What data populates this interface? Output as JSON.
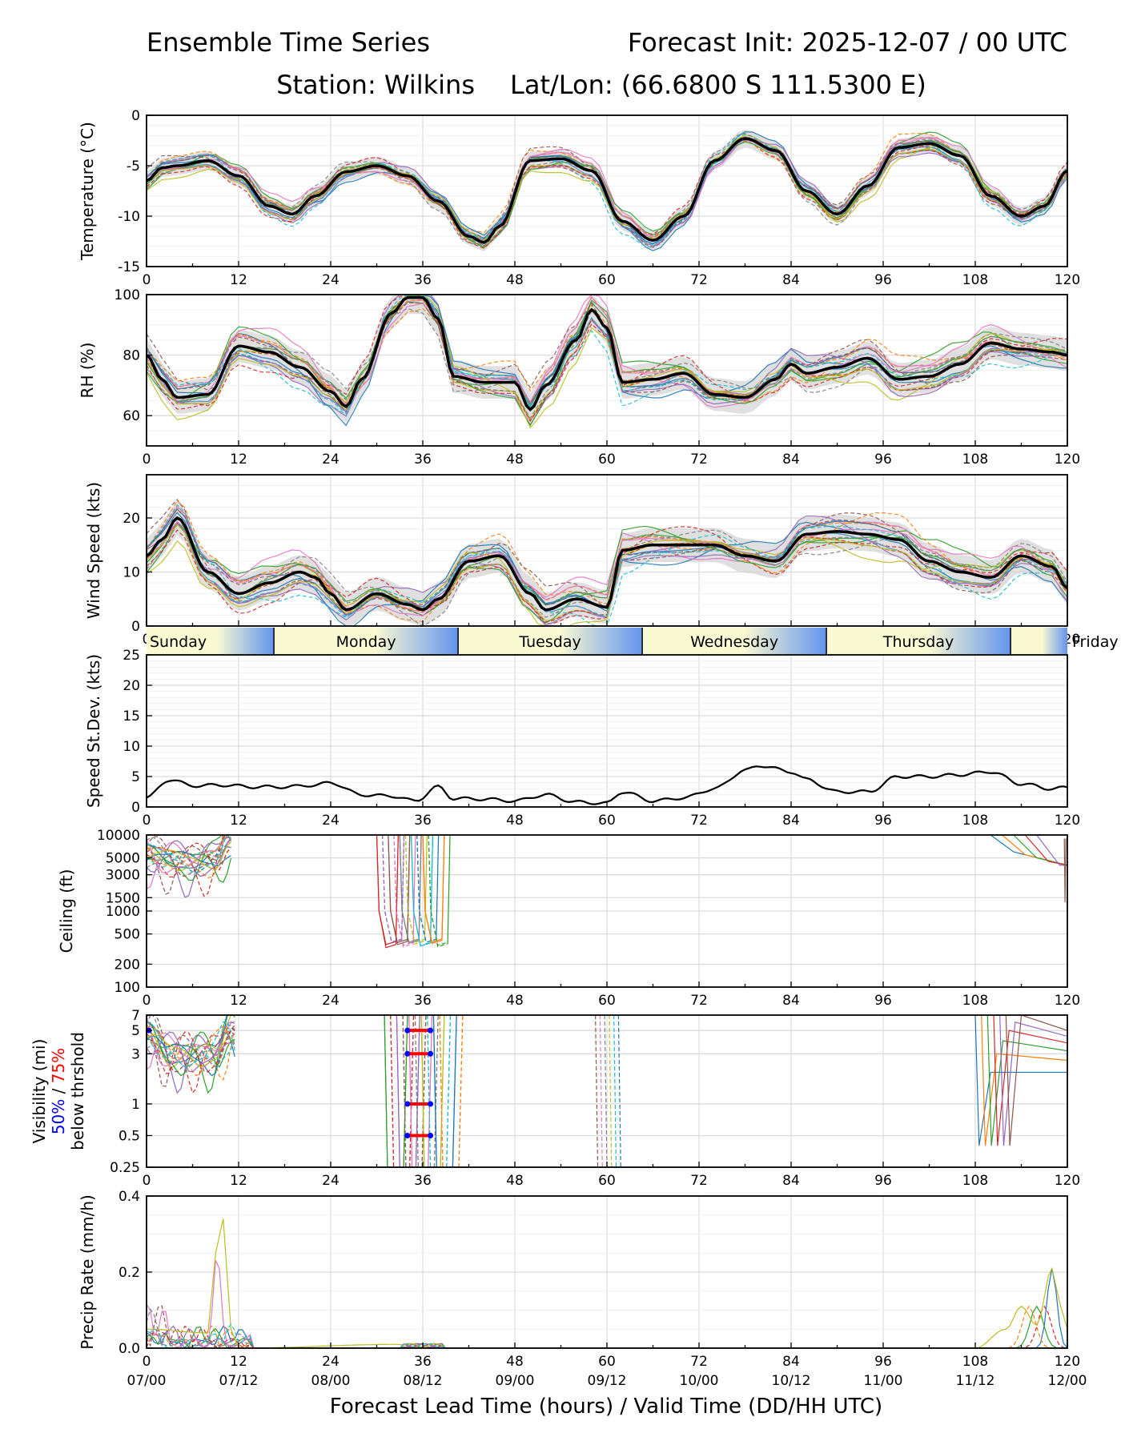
{
  "header": {
    "title_left": "Ensemble Time Series",
    "title_right": "Forecast Init: 2025-12-07 / 00 UTC",
    "station": "Station: Wilkins",
    "latlon": "Lat/Lon: (66.6800 S 111.5300 E)"
  },
  "x_axis": {
    "label": "Forecast Lead Time (hours) / Valid Time (DD/HH UTC)",
    "ticks": [
      "0",
      "12",
      "24",
      "36",
      "48",
      "60",
      "72",
      "84",
      "96",
      "108",
      "120"
    ],
    "valid_times": [
      "07/00",
      "07/12",
      "08/00",
      "08/12",
      "09/00",
      "09/12",
      "10/00",
      "10/12",
      "11/00",
      "11/12",
      "12/00"
    ],
    "range": [
      0,
      120
    ]
  },
  "day_band": [
    "Sunday",
    "Monday",
    "Tuesday",
    "Wednesday",
    "Thursday",
    "Friday"
  ],
  "colors": {
    "mean": "#000000",
    "spread": "#d3d3d3",
    "vis_50": "#0000ff",
    "vis_75": "#ff0000",
    "band_light": "#fafad2",
    "band_dark": "#6495ed",
    "members": [
      "#1f77b4",
      "#ff7f0e",
      "#2ca02c",
      "#d62728",
      "#9467bd",
      "#8c564b",
      "#e377c2",
      "#7f7f7f",
      "#bcbd22",
      "#17becf"
    ]
  },
  "chart_data": [
    {
      "id": "temperature",
      "type": "line",
      "ylabel": "Temperature (°C)",
      "ylim": [
        -15,
        0
      ],
      "yticks": [
        "-15",
        "-10",
        "-5",
        "0"
      ],
      "ytick_values": [
        -15,
        -10,
        -5,
        0
      ],
      "series": [
        {
          "name": "ensemble mean",
          "x": [
            0,
            2,
            4,
            8,
            12,
            16,
            19,
            22,
            26,
            30,
            34,
            38,
            42,
            44,
            46,
            50,
            54,
            58,
            62,
            66,
            70,
            74,
            78,
            82,
            86,
            90,
            94,
            98,
            102,
            106,
            110,
            114,
            117,
            120
          ],
          "y": [
            -6.5,
            -5.2,
            -5.0,
            -4.5,
            -6.0,
            -9.0,
            -9.8,
            -8.0,
            -5.6,
            -5.0,
            -6.0,
            -8.5,
            -12.0,
            -12.6,
            -11.0,
            -4.5,
            -4.3,
            -5.5,
            -10.5,
            -12.4,
            -10.0,
            -4.5,
            -2.3,
            -3.5,
            -7.5,
            -9.8,
            -7.0,
            -3.2,
            -2.8,
            -4.0,
            -8.0,
            -10.0,
            -9.0,
            -5.5
          ]
        }
      ]
    },
    {
      "id": "rh",
      "type": "line",
      "ylabel": "RH (%)",
      "ylim": [
        50,
        100
      ],
      "yticks": [
        "60",
        "80",
        "100"
      ],
      "ytick_values": [
        60,
        80,
        100
      ],
      "series": [
        {
          "name": "ensemble mean",
          "x": [
            0,
            2,
            4,
            8,
            12,
            16,
            20,
            24,
            26,
            28,
            32,
            34,
            36,
            38,
            40,
            44,
            48,
            50,
            52,
            56,
            58,
            60,
            62,
            66,
            70,
            74,
            78,
            82,
            84,
            86,
            90,
            94,
            98,
            102,
            106,
            110,
            114,
            118,
            120
          ],
          "y": [
            80,
            72,
            66,
            67,
            83,
            81,
            76,
            68,
            63,
            72,
            94,
            99,
            99,
            92,
            73,
            71,
            71,
            62,
            70,
            85,
            95,
            89,
            71,
            72,
            74,
            67,
            66,
            72,
            77,
            74,
            76,
            79,
            72,
            73,
            77,
            84,
            82,
            81,
            80
          ]
        }
      ]
    },
    {
      "id": "wind",
      "type": "line",
      "ylabel": "Wind Speed (kts)",
      "ylim": [
        0,
        28
      ],
      "yticks": [
        "0",
        "10",
        "20"
      ],
      "ytick_values": [
        0,
        10,
        20
      ],
      "series": [
        {
          "name": "ensemble mean",
          "x": [
            0,
            2,
            4,
            8,
            12,
            16,
            20,
            22,
            24,
            26,
            30,
            34,
            36,
            38,
            42,
            46,
            50,
            52,
            56,
            60,
            62,
            66,
            70,
            74,
            78,
            82,
            86,
            90,
            94,
            98,
            102,
            106,
            110,
            114,
            118,
            120
          ],
          "y": [
            13,
            16,
            20,
            10,
            6,
            8,
            10,
            9,
            6,
            3,
            6,
            4,
            3,
            5,
            12,
            13,
            6,
            3,
            5,
            3.5,
            14,
            15,
            15,
            15,
            13,
            12,
            17,
            17.5,
            17,
            16,
            12,
            10,
            9,
            13,
            11,
            7
          ]
        }
      ]
    },
    {
      "id": "speed_stdev",
      "type": "line",
      "ylabel": "Speed St.Dev. (kts)",
      "ylim": [
        0,
        25
      ],
      "yticks": [
        "0",
        "5",
        "10",
        "15",
        "20",
        "25"
      ],
      "ytick_values": [
        0,
        5,
        10,
        15,
        20,
        25
      ],
      "series": [
        {
          "name": "std dev",
          "x": [
            0,
            3,
            6,
            10,
            14,
            18,
            22,
            24,
            28,
            32,
            35,
            38,
            40,
            44,
            48,
            52,
            56,
            60,
            62,
            66,
            70,
            74,
            78,
            80,
            84,
            86,
            90,
            94,
            98,
            102,
            106,
            110,
            114,
            118,
            120
          ],
          "y": [
            1.5,
            4.5,
            3.5,
            3.6,
            3.3,
            3.3,
            3.6,
            4.0,
            2.0,
            1.8,
            1.0,
            3.3,
            1.4,
            1.3,
            1.0,
            2.0,
            0.8,
            0.6,
            2.5,
            1.0,
            1.5,
            3.0,
            6.0,
            6.8,
            5.8,
            4.5,
            2.5,
            2.5,
            5.0,
            5.0,
            5.3,
            5.8,
            3.8,
            3.0,
            3.2
          ]
        }
      ]
    },
    {
      "id": "ceiling",
      "type": "line",
      "scale": "log",
      "ylabel": "Ceiling (ft)",
      "ylim": [
        100,
        10000
      ],
      "yticks": [
        "100",
        "200",
        "500",
        "1000",
        "1500",
        "3000",
        "5000",
        "10000"
      ],
      "ytick_values": [
        100,
        200,
        500,
        1000,
        1500,
        3000,
        5000,
        10000
      ],
      "series": [
        {
          "name": "members (schematic)",
          "x": [
            0,
            3,
            6,
            9,
            11
          ],
          "y": [
            6000,
            5000,
            4500,
            5000,
            9500
          ]
        }
      ]
    },
    {
      "id": "visibility",
      "type": "line",
      "scale": "log",
      "ylabel": "Visibility (mi)",
      "ylabel2": "below thrshold",
      "ylabel_50": "50%",
      "ylabel_sep": " / ",
      "ylabel_75": "75%",
      "ylim": [
        0.25,
        7
      ],
      "yticks": [
        "0.25",
        "0.5",
        "1",
        "3",
        "5",
        "7"
      ],
      "ytick_values": [
        0.25,
        0.5,
        1,
        3,
        5,
        7
      ],
      "thresholds": [
        0.5,
        1,
        3,
        5
      ],
      "series": [
        {
          "name": "members (schematic)",
          "x": [
            0,
            3,
            6,
            9,
            11
          ],
          "y": [
            5,
            3,
            3,
            3,
            5
          ]
        }
      ]
    },
    {
      "id": "precip",
      "type": "line",
      "ylabel": "Precip Rate (mm/h)",
      "ylim": [
        0,
        0.4
      ],
      "yticks": [
        "0.0",
        "0.2",
        "0.4"
      ],
      "ytick_values": [
        0,
        0.2,
        0.4
      ],
      "series": [
        {
          "name": "peak member",
          "x": [
            0,
            8,
            9,
            10,
            11,
            12,
            33,
            36,
            38,
            108,
            112,
            114,
            116,
            118,
            119,
            120
          ],
          "y": [
            0.05,
            0.04,
            0.25,
            0.34,
            0.05,
            0.0,
            0.01,
            0.02,
            0.0,
            0.0,
            0.05,
            0.11,
            0.06,
            0.21,
            0.12,
            0.05
          ]
        }
      ]
    }
  ]
}
